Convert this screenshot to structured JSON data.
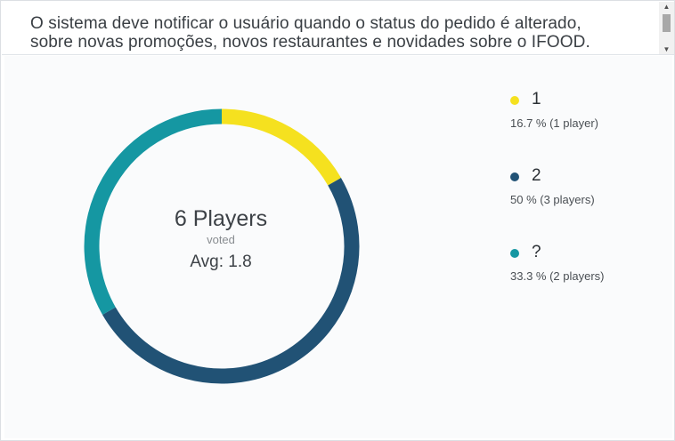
{
  "question": {
    "line1": "O sistema deve notificar o usuário quando o status do pedido é alterado,",
    "line2": "sobre novas promoções, novos restaurantes e novidades sobre o IFOOD."
  },
  "result": {
    "players_label": "6 Players",
    "voted_label": "voted",
    "avg_label": "Avg: 1.8"
  },
  "legend": [
    {
      "label": "1",
      "detail": "16.7 % (1 player)",
      "color": "#f5e11f"
    },
    {
      "label": "2",
      "detail": "50 % (3 players)",
      "color": "#215275"
    },
    {
      "label": "?",
      "detail": "33.3 % (2 players)",
      "color": "#1597a2"
    }
  ],
  "chart_data": {
    "type": "pie",
    "variant": "donut",
    "categories": [
      "1",
      "2",
      "?"
    ],
    "values": [
      16.7,
      50,
      33.3
    ],
    "counts": [
      1,
      3,
      2
    ],
    "colors": [
      "#f5e11f",
      "#215275",
      "#1597a2"
    ],
    "legend_position": "right"
  }
}
